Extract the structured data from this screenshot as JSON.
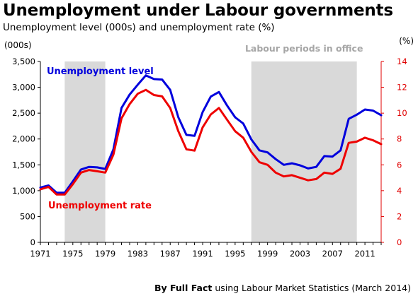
{
  "title": "Unemployment under Labour governments",
  "subtitle": "Unemployment level (000s) and unemployment rate (%)",
  "footer": {
    "bold": "By Full Fact",
    "rest": " using Labour Market Statistics (March 2014)"
  },
  "colors": {
    "level": "#0000dd",
    "rate": "#ee0000",
    "shade": "#d9d9d9",
    "axis": "#000000"
  },
  "chart_data": {
    "type": "line",
    "x": [
      1971,
      1972,
      1973,
      1974,
      1975,
      1976,
      1977,
      1978,
      1979,
      1980,
      1981,
      1982,
      1983,
      1984,
      1985,
      1986,
      1987,
      1988,
      1989,
      1990,
      1991,
      1992,
      1993,
      1994,
      1995,
      1996,
      1997,
      1998,
      1999,
      2000,
      2001,
      2002,
      2003,
      2004,
      2005,
      2006,
      2007,
      2008,
      2009,
      2010,
      2011,
      2012,
      2013
    ],
    "x_ticks": [
      "1971",
      "1975",
      "1979",
      "1983",
      "1987",
      "1991",
      "1995",
      "1999",
      "2003",
      "2007",
      "2011"
    ],
    "xlim": [
      1971,
      2013
    ],
    "left_axis": {
      "unit_label": "(000s)",
      "ylim": [
        0,
        3500
      ],
      "ticks": [
        "0",
        "500",
        "1,000",
        "1,500",
        "2,000",
        "2,500",
        "3,000",
        "3,500"
      ]
    },
    "right_axis": {
      "unit_label": "(%)",
      "ylim": [
        0,
        14
      ],
      "ticks": [
        "0",
        "2",
        "4",
        "6",
        "8",
        "10",
        "12",
        "14"
      ]
    },
    "shaded_label": "Labour periods in office",
    "shaded_periods": [
      [
        1974,
        1979
      ],
      [
        1997,
        2010
      ]
    ],
    "series": [
      {
        "name": "Unemployment level",
        "axis": "left",
        "values": [
          1060,
          1100,
          960,
          960,
          1180,
          1410,
          1460,
          1450,
          1420,
          1800,
          2600,
          2860,
          3050,
          3230,
          3160,
          3150,
          2950,
          2420,
          2080,
          2060,
          2520,
          2820,
          2910,
          2650,
          2420,
          2300,
          1990,
          1780,
          1740,
          1610,
          1500,
          1530,
          1490,
          1430,
          1460,
          1670,
          1660,
          1780,
          2390,
          2470,
          2570,
          2550,
          2460
        ]
      },
      {
        "name": "Unemployment rate",
        "axis": "right",
        "values": [
          4.1,
          4.3,
          3.7,
          3.7,
          4.5,
          5.4,
          5.6,
          5.5,
          5.4,
          6.8,
          9.6,
          10.7,
          11.5,
          11.8,
          11.4,
          11.3,
          10.4,
          8.6,
          7.2,
          7.1,
          8.9,
          9.9,
          10.4,
          9.5,
          8.6,
          8.1,
          7.0,
          6.2,
          6.0,
          5.4,
          5.1,
          5.2,
          5.0,
          4.8,
          4.9,
          5.4,
          5.3,
          5.7,
          7.7,
          7.8,
          8.1,
          7.9,
          7.6
        ]
      }
    ]
  }
}
